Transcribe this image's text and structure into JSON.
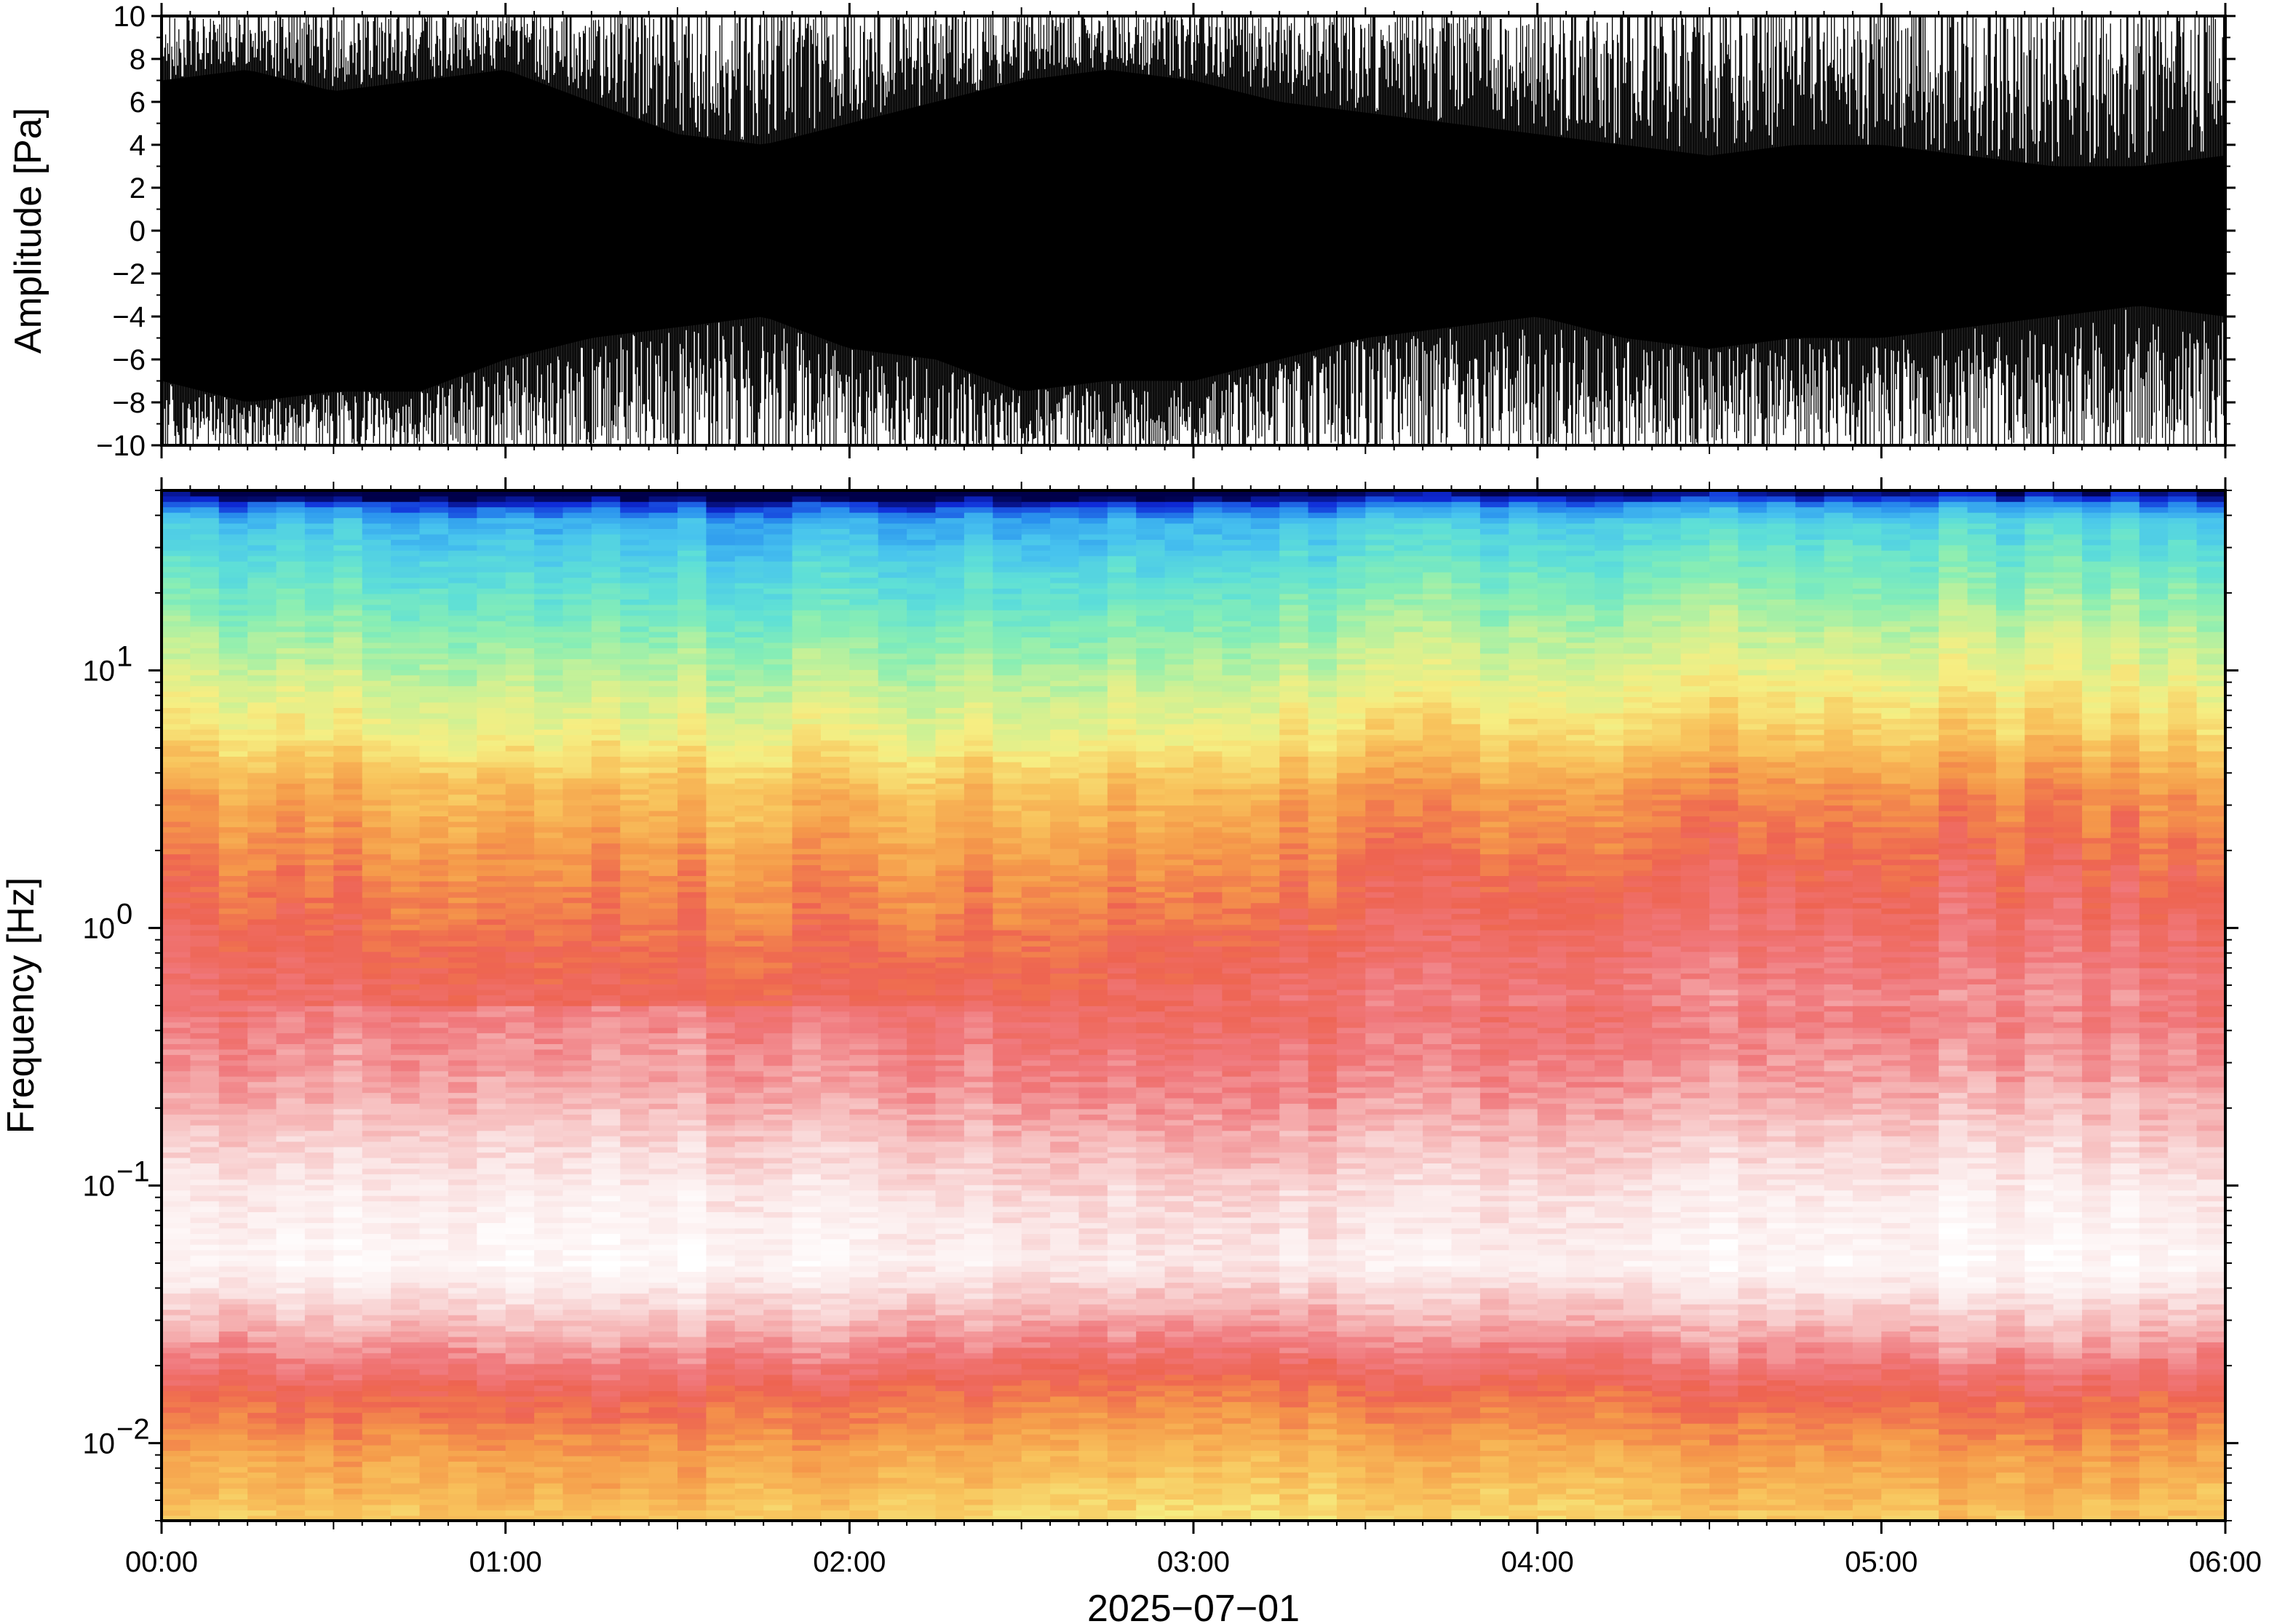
{
  "chart_data": [
    {
      "type": "line",
      "panel": "waveform",
      "ylabel": "Amplitude [Pa]",
      "xlabel": "",
      "ylim": [
        -10,
        10
      ],
      "yticks": [
        10,
        8,
        6,
        4,
        2,
        0,
        -2,
        -4,
        -6,
        -8,
        -10
      ],
      "ytick_labels": [
        "10",
        "8",
        "6",
        "4",
        "2",
        "0",
        "−2",
        "−4",
        "−6",
        "−8",
        "−10"
      ],
      "xlim": [
        "2025-07-01 00:00",
        "2025-07-01 06:00"
      ],
      "grid": false,
      "series": [
        {
          "color": "#000000",
          "x": [
            "00:00",
            "00:15",
            "00:30",
            "00:45",
            "01:00",
            "01:15",
            "01:30",
            "01:45",
            "02:00",
            "02:15",
            "02:30",
            "02:45",
            "03:00",
            "03:15",
            "03:30",
            "03:45",
            "04:00",
            "04:15",
            "04:30",
            "04:45",
            "05:00",
            "05:15",
            "05:30",
            "05:45",
            "06:00"
          ],
          "upper_envelope": [
            10,
            10,
            10,
            10,
            10,
            10,
            10,
            10,
            10,
            10,
            10,
            10,
            10,
            10,
            10,
            10,
            10,
            10,
            10,
            10,
            10,
            10,
            10,
            10,
            10
          ],
          "lower_envelope": [
            -10,
            -10,
            -10,
            -10,
            -10,
            -10,
            -10,
            -10,
            -10,
            -10,
            -10,
            -10,
            -10,
            -10,
            -10,
            -10,
            -10,
            -10,
            -10,
            -10,
            -10,
            -10,
            -10,
            -10,
            -10
          ],
          "dense_core_upper": [
            7,
            7.5,
            6.5,
            7,
            7.5,
            6,
            4.5,
            4,
            5,
            6,
            7,
            7.5,
            7,
            6,
            5.5,
            5,
            4.5,
            4,
            3.5,
            4,
            4,
            3.5,
            3,
            3,
            3.5
          ],
          "dense_core_lower": [
            -7,
            -8,
            -7.5,
            -7.5,
            -6,
            -5,
            -4.5,
            -4,
            -5.5,
            -6,
            -7.5,
            -7,
            -7,
            -6,
            -5,
            -4.5,
            -4,
            -5,
            -5.5,
            -5,
            -5,
            -4.5,
            -4,
            -3.5,
            -4
          ]
        }
      ]
    },
    {
      "type": "heatmap",
      "panel": "spectrogram",
      "ylabel": "Frequency [Hz]",
      "xlabel": "2025−07−01",
      "yscale": "log",
      "ylim": [
        0.005,
        50
      ],
      "yticks": [
        {
          "value": 10,
          "base": "10",
          "exp": "1"
        },
        {
          "value": 1,
          "base": "10",
          "exp": "0"
        },
        {
          "value": 0.1,
          "base": "10",
          "exp": "−1"
        },
        {
          "value": 0.01,
          "base": "10",
          "exp": "−2"
        }
      ],
      "xticks": [
        "00:00",
        "01:00",
        "02:00",
        "03:00",
        "04:00",
        "05:00",
        "06:00"
      ],
      "xlim": [
        "2025-07-01 00:00",
        "2025-07-01 06:00"
      ],
      "grid": false,
      "colormap": [
        "#00004a",
        "#0f2bd8",
        "#2a92ee",
        "#48c4ee",
        "#5fe0d6",
        "#88eeb4",
        "#c9f196",
        "#f6ee82",
        "#f8c35c",
        "#f59a4a",
        "#ee6451",
        "#f0787c",
        "#f6b9b9",
        "#fbe9e9",
        "#ffffff"
      ],
      "frequency_profile": [
        {
          "freq": 48,
          "level": 0.0
        },
        {
          "freq": 45,
          "level": 0.1
        },
        {
          "freq": 38,
          "level": 0.22
        },
        {
          "freq": 25,
          "level": 0.3
        },
        {
          "freq": 15,
          "level": 0.38
        },
        {
          "freq": 9,
          "level": 0.46
        },
        {
          "freq": 5.5,
          "level": 0.53
        },
        {
          "freq": 3.5,
          "level": 0.62
        },
        {
          "freq": 1.5,
          "level": 0.7
        },
        {
          "freq": 0.6,
          "level": 0.76
        },
        {
          "freq": 0.25,
          "level": 0.82
        },
        {
          "freq": 0.1,
          "level": 0.92
        },
        {
          "freq": 0.05,
          "level": 0.96
        },
        {
          "freq": 0.025,
          "level": 0.82
        },
        {
          "freq": 0.015,
          "level": 0.7
        },
        {
          "freq": 0.009,
          "level": 0.62
        },
        {
          "freq": 0.005,
          "level": 0.55
        }
      ]
    }
  ]
}
